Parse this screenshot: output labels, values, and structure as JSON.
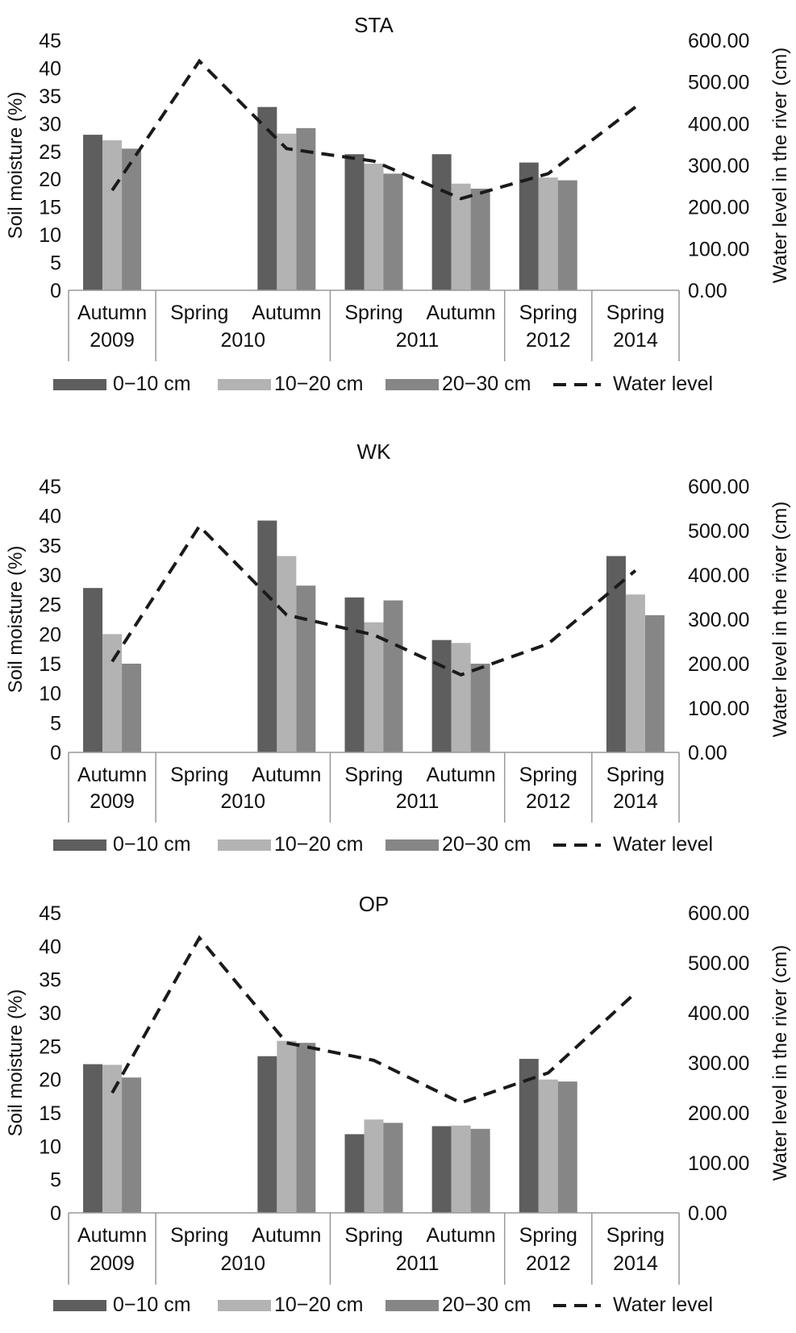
{
  "legend": {
    "items": [
      "0−10 cm",
      "10−20 cm",
      "20−30 cm",
      "Water level"
    ]
  },
  "colors": {
    "d0_10": "#5e5e5e",
    "d10_20": "#b3b3b3",
    "d20_30": "#868686",
    "water": "#1a1a1a",
    "axis": "#999999"
  },
  "chart_data": [
    {
      "type": "bar",
      "title": "STA",
      "ylabel": "Soil moisture (%)",
      "y2label": "Water level in the river (cm)",
      "ylim": [
        0,
        45
      ],
      "y2lim": [
        0,
        600
      ],
      "y_ticks": [
        "0",
        "5",
        "10",
        "15",
        "20",
        "25",
        "30",
        "35",
        "40",
        "45"
      ],
      "y2_ticks": [
        "0.00",
        "100.00",
        "200.00",
        "300.00",
        "400.00",
        "500.00",
        "600.00"
      ],
      "categories": [
        "Autumn",
        "Spring",
        "Autumn",
        "Spring",
        "Autumn",
        "Spring",
        "Spring"
      ],
      "years": [
        {
          "label": "2009",
          "span": 1
        },
        {
          "label": "2010",
          "span": 2
        },
        {
          "label": "2011",
          "span": 2
        },
        {
          "label": "2012",
          "span": 1
        },
        {
          "label": "2014",
          "span": 1
        }
      ],
      "series": [
        {
          "name": "0−10 cm",
          "values": [
            28,
            null,
            33,
            24.5,
            24.5,
            23,
            null
          ]
        },
        {
          "name": "10−20 cm",
          "values": [
            27,
            null,
            28.2,
            22.8,
            19.2,
            20.3,
            null
          ]
        },
        {
          "name": "20−30 cm",
          "values": [
            25.5,
            null,
            29.2,
            21,
            18.3,
            19.8,
            null
          ]
        }
      ],
      "water_level": {
        "name": "Water level",
        "values": [
          240,
          550,
          340,
          310,
          220,
          280,
          440
        ]
      },
      "legend_position": "bottom"
    },
    {
      "type": "bar",
      "title": "WK",
      "ylabel": "Soil moisture (%)",
      "y2label": "Water level in the river (cm)",
      "ylim": [
        0,
        45
      ],
      "y2lim": [
        0,
        600
      ],
      "y_ticks": [
        "0",
        "5",
        "10",
        "15",
        "20",
        "25",
        "30",
        "35",
        "40",
        "45"
      ],
      "y2_ticks": [
        "0.00",
        "100.00",
        "200.00",
        "300.00",
        "400.00",
        "500.00",
        "600.00"
      ],
      "categories": [
        "Autumn",
        "Spring",
        "Autumn",
        "Spring",
        "Autumn",
        "Spring",
        "Spring"
      ],
      "years": [
        {
          "label": "2009",
          "span": 1
        },
        {
          "label": "2010",
          "span": 2
        },
        {
          "label": "2011",
          "span": 2
        },
        {
          "label": "2012",
          "span": 1
        },
        {
          "label": "2014",
          "span": 1
        }
      ],
      "series": [
        {
          "name": "0−10 cm",
          "values": [
            27.8,
            null,
            39.2,
            26.2,
            19,
            null,
            33.2
          ]
        },
        {
          "name": "10−20 cm",
          "values": [
            20,
            null,
            33.2,
            22,
            18.5,
            null,
            26.7
          ]
        },
        {
          "name": "20−30 cm",
          "values": [
            15,
            null,
            28.2,
            25.7,
            15,
            null,
            23.2
          ]
        }
      ],
      "water_level": {
        "name": "Water level",
        "values": [
          205,
          510,
          310,
          265,
          175,
          245,
          410
        ]
      },
      "legend_position": "bottom"
    },
    {
      "type": "bar",
      "title": "OP",
      "ylabel": "Soil moisture (%)",
      "y2label": "Water level in the river (cm)",
      "ylim": [
        0,
        45
      ],
      "y2lim": [
        0,
        600
      ],
      "y_ticks": [
        "0",
        "5",
        "10",
        "15",
        "20",
        "25",
        "30",
        "35",
        "40",
        "45"
      ],
      "y2_ticks": [
        "0.00",
        "100.00",
        "200.00",
        "300.00",
        "400.00",
        "500.00",
        "600.00"
      ],
      "categories": [
        "Autumn",
        "Spring",
        "Autumn",
        "Spring",
        "Autumn",
        "Spring",
        "Spring"
      ],
      "years": [
        {
          "label": "2009",
          "span": 1
        },
        {
          "label": "2010",
          "span": 2
        },
        {
          "label": "2011",
          "span": 2
        },
        {
          "label": "2012",
          "span": 1
        },
        {
          "label": "2014",
          "span": 1
        }
      ],
      "series": [
        {
          "name": "0−10 cm",
          "values": [
            22.3,
            null,
            23.5,
            11.8,
            13,
            23.1,
            null
          ]
        },
        {
          "name": "10−20 cm",
          "values": [
            22.2,
            null,
            25.8,
            14,
            13.1,
            20,
            null
          ]
        },
        {
          "name": "20−30 cm",
          "values": [
            20.3,
            null,
            25.5,
            13.5,
            12.6,
            19.7,
            null
          ]
        }
      ],
      "water_level": {
        "name": "Water level",
        "values": [
          240,
          550,
          340,
          305,
          220,
          280,
          440
        ]
      },
      "legend_position": "bottom"
    }
  ]
}
